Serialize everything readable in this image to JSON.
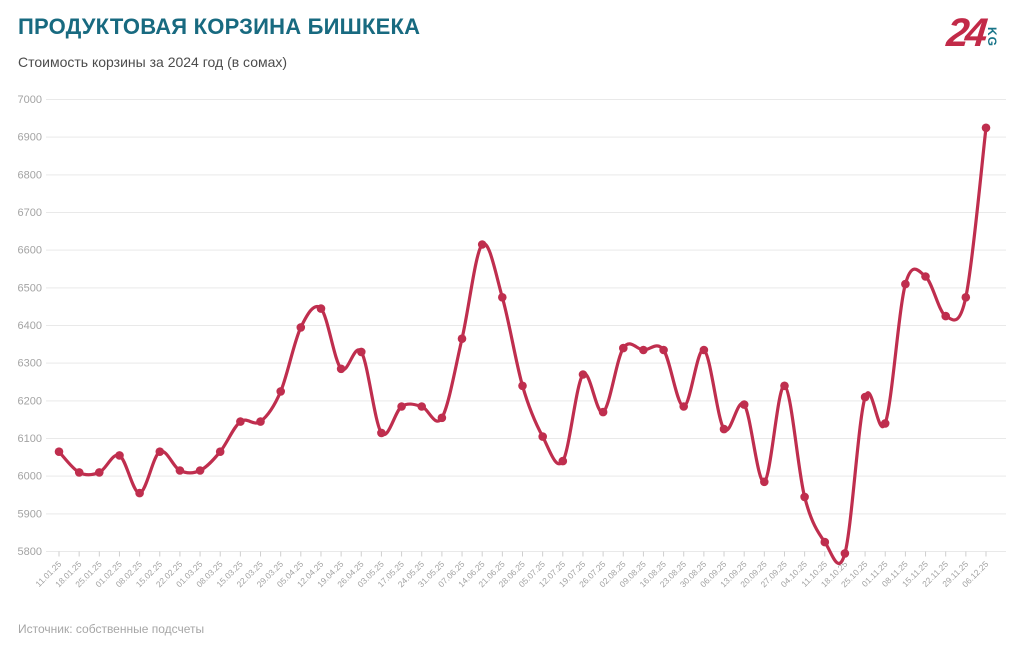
{
  "header": {
    "title": "ПРОДУКТОВАЯ КОРЗИНА БИШКЕКА",
    "subtitle": "Стоимость корзины за 2024 год (в сомах)"
  },
  "logo": {
    "number": "24",
    "suffix": "KG"
  },
  "footer": {
    "source": "Источник: собственные подсчеты"
  },
  "colors": {
    "title": "#186a80",
    "line": "#bf2e4e",
    "grid": "#e9e9e9",
    "tick": "#cfcfcf",
    "axis_label": "#a3a3a3",
    "logo_red": "#c22a48",
    "logo_teal": "#187488"
  },
  "chart_data": {
    "type": "line",
    "title": "ПРОДУКТОВАЯ КОРЗИНА БИШКЕКА",
    "subtitle": "Стоимость корзины за 2024 год (в сомах)",
    "xlabel": "",
    "ylabel": "",
    "ylim": [
      5800,
      7000
    ],
    "ytick_step": 100,
    "grid": true,
    "legend": false,
    "line_style": "spline",
    "marker": "circle",
    "x": [
      "11.01.25",
      "18.01.25",
      "25.01.25",
      "01.02.25",
      "08.02.25",
      "15.02.25",
      "22.02.25",
      "01.03.25",
      "08.03.25",
      "15.03.25",
      "22.03.25",
      "29.03.25",
      "05.04.25",
      "12.04.25",
      "19.04.25",
      "26.04.25",
      "03.05.25",
      "17.05.25",
      "24.05.25",
      "31.05.25",
      "07.06.25",
      "14.06.25",
      "21.06.25",
      "28.06.25",
      "05.07.25",
      "12.07.25",
      "19.07.25",
      "26.07.25",
      "02.08.25",
      "09.08.25",
      "16.08.25",
      "23.08.25",
      "30.08.25",
      "06.09.25",
      "13.09.25",
      "20.09.25",
      "27.09.25",
      "04.10.25",
      "11.10.25",
      "18.10.25",
      "25.10.25",
      "01.11.25",
      "08.11.25",
      "15.11.25",
      "22.11.25",
      "29.11.25",
      "06.12.25"
    ],
    "values": [
      6065,
      6010,
      6010,
      6055,
      5955,
      6065,
      6015,
      6015,
      6065,
      6145,
      6145,
      6225,
      6395,
      6445,
      6285,
      6330,
      6115,
      6185,
      6185,
      6155,
      6365,
      6615,
      6475,
      6240,
      6105,
      6040,
      6270,
      6170,
      6340,
      6335,
      6335,
      6185,
      6335,
      6125,
      6190,
      5985,
      6240,
      5945,
      5825,
      5795,
      6210,
      6140,
      6510,
      6530,
      6425,
      6475,
      6925
    ]
  }
}
